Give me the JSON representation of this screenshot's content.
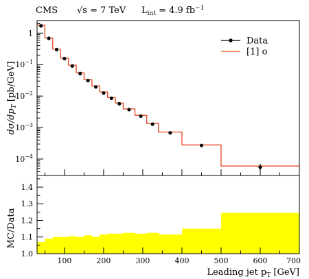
{
  "header": {
    "experiment": "CMS",
    "energy": "√s = 7 TeV",
    "lumi": "L",
    "lumi_sub": "int",
    "lumi_value": " = 4.9 fb",
    "lumi_exp": "−1"
  },
  "chart_data": [
    {
      "type": "line",
      "panel": "main",
      "xlabel": "",
      "ylabel": "dσ/dp_T [pb/GeV]",
      "ylabel_main": "dσ/dp",
      "ylabel_sub": "T",
      "ylabel_unit": " [pb/GeV]",
      "yscale": "log",
      "xlim": [
        30,
        700
      ],
      "ylim": [
        3e-05,
        2.5
      ],
      "yticks": [
        0.0001,
        0.001,
        0.01,
        0.1,
        1
      ],
      "ytick_labels": [
        "10^-4",
        "10^-3",
        "10^-2",
        "10^-1",
        "1"
      ],
      "bin_edges": [
        30,
        50,
        70,
        90,
        110,
        130,
        150,
        170,
        190,
        210,
        230,
        250,
        280,
        310,
        340,
        400,
        500,
        700
      ],
      "series": [
        {
          "name": "Data",
          "style": "points-with-errorbars",
          "color": "#000000",
          "x": [
            40,
            60,
            80,
            100,
            120,
            140,
            160,
            180,
            200,
            220,
            240,
            265,
            295,
            325,
            370,
            450,
            600
          ],
          "values": [
            1.7,
            0.68,
            0.3,
            0.155,
            0.09,
            0.052,
            0.031,
            0.0195,
            0.0125,
            0.0085,
            0.0057,
            0.0037,
            0.0023,
            0.00128,
            0.00068,
            0.00027,
            5.5e-05
          ]
        },
        {
          "name": "[1] o",
          "style": "histogram",
          "color": "#e8431f",
          "values": [
            1.8,
            0.7,
            0.31,
            0.16,
            0.096,
            0.055,
            0.033,
            0.021,
            0.0135,
            0.009,
            0.006,
            0.0039,
            0.00245,
            0.00135,
            0.00072,
            0.00028,
            6e-05
          ]
        }
      ],
      "legend_position": "top-right"
    },
    {
      "type": "area",
      "panel": "ratio",
      "xlabel": "Leading jet p_T [GeV]",
      "xlabel_main": "Leading jet p",
      "xlabel_sub": "T",
      "xlabel_unit": " [GeV]",
      "ylabel": "MC/Data",
      "xlim": [
        30,
        700
      ],
      "ylim": [
        1.0,
        1.47
      ],
      "xticks": [
        100,
        200,
        300,
        400,
        500,
        600,
        700
      ],
      "xtick_labels": [
        "100",
        "200",
        "300",
        "400",
        "500",
        "600",
        "700"
      ],
      "yticks": [
        1.0,
        1.1,
        1.2,
        1.3,
        1.4
      ],
      "ytick_labels": [
        "1.0",
        "1.1",
        "1.2",
        "1.3",
        "1.4"
      ],
      "bin_edges": [
        30,
        50,
        70,
        90,
        110,
        130,
        150,
        170,
        190,
        210,
        230,
        250,
        280,
        310,
        340,
        400,
        500,
        700
      ],
      "band_low": 1.0,
      "band_high": [
        1.07,
        1.09,
        1.1,
        1.1,
        1.105,
        1.1,
        1.11,
        1.1,
        1.115,
        1.12,
        1.12,
        1.125,
        1.12,
        1.125,
        1.115,
        1.15,
        1.245
      ],
      "band_color": "#ffff00"
    }
  ],
  "colors": {
    "data_points": "#000000",
    "mc_histogram": "#e8431f",
    "ratio_band": "#ffff00",
    "frame": "#000000"
  }
}
